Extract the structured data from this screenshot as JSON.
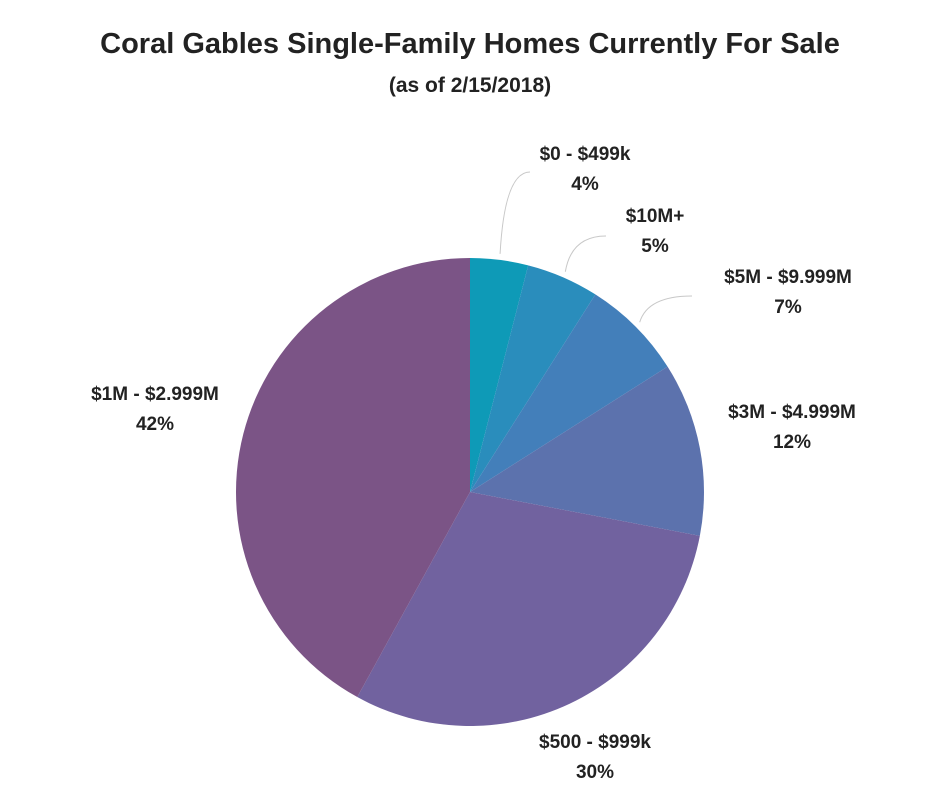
{
  "title": "Coral Gables Single-Family Homes Currently For Sale",
  "subtitle": "(as of 2/15/2018)",
  "chart_data": {
    "type": "pie",
    "title": "Coral Gables Single-Family Homes Currently For Sale",
    "subtitle": "(as of 2/15/2018)",
    "start": "top, clockwise",
    "slices": [
      {
        "label": "$0 - $499k",
        "value": 4,
        "display": "4%",
        "color": "#0e9ab7"
      },
      {
        "label": "$10M+",
        "value": 5,
        "display": "5%",
        "color": "#2a8dbc"
      },
      {
        "label": "$5M - $9.999M",
        "value": 7,
        "display": "7%",
        "color": "#437fba"
      },
      {
        "label": "$3M - $4.999M",
        "value": 12,
        "display": "12%",
        "color": "#5c72ad"
      },
      {
        "label": "$500 - $999k",
        "value": 30,
        "display": "30%",
        "color": "#71629f"
      },
      {
        "label": "$1M - $2.999M",
        "value": 42,
        "display": "42%",
        "color": "#7b5486"
      }
    ]
  }
}
